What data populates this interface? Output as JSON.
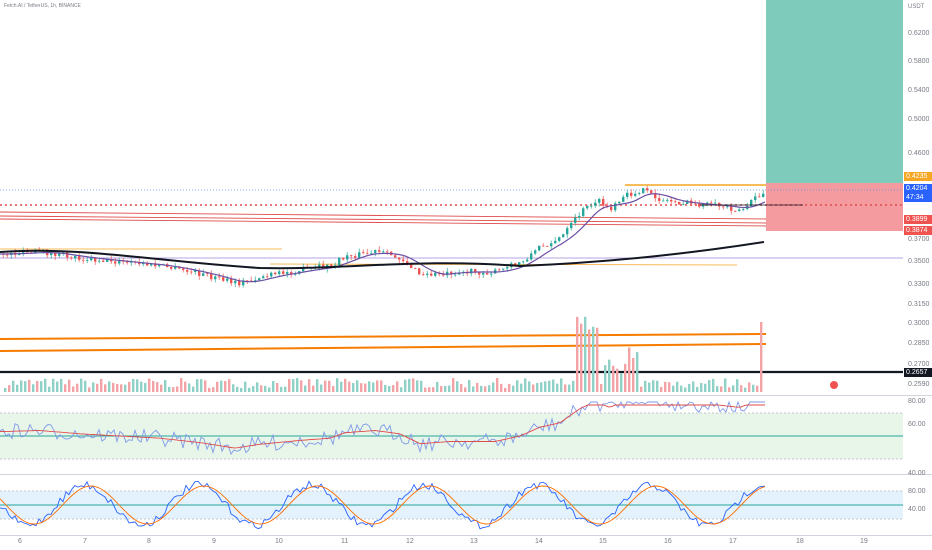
{
  "symbol_line": "Fetch.AI / TetherUS, 1h, BINANCE",
  "currency": "USDT",
  "price_axis": [
    "0.6200",
    "0.5800",
    "0.5400",
    "0.5000",
    "0.4600",
    "0.3700",
    "0.3500",
    "0.3300",
    "0.3150",
    "0.3000",
    "0.2850",
    "0.2700",
    "0.2590"
  ],
  "price_tags": {
    "upper": "0.4235",
    "current": "0.4204",
    "countdown": "47:34",
    "stop_a": "0.3899",
    "stop_b": "0.3874",
    "level": "0.2657"
  },
  "rsi_axis": [
    "80.00",
    "60.00",
    "40.00"
  ],
  "stoch_axis": [
    "80.00",
    "40.00"
  ],
  "time_axis": [
    "6",
    "7",
    "8",
    "9",
    "10",
    "11",
    "12",
    "13",
    "14",
    "15",
    "16",
    "17",
    "18",
    "19"
  ],
  "colors": {
    "up": "#26a69a",
    "down": "#ef5350",
    "orange": "#f5a623",
    "red_line": "#e04b4b",
    "target_zone": "#7ecbbb",
    "stop_zone": "#f49ba0",
    "rsi_line": "#7e9ae8",
    "rsi_ma": "#e04b4b",
    "rsi_band": "#e8f5e9",
    "stoch_band": "#e3f2fd",
    "black_line": "#131722",
    "purple_line": "#6b4fa3"
  }
}
